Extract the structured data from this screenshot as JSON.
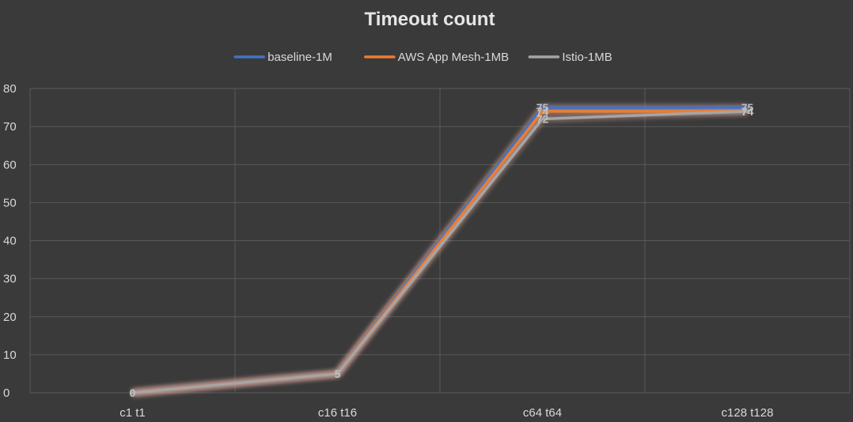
{
  "chart_data": {
    "type": "line",
    "title": "Timeout count",
    "xlabel": "",
    "ylabel": "",
    "categories": [
      "c1 t1",
      "c16 t16",
      "c64 t64",
      "c128 t128"
    ],
    "ylim": [
      0,
      80
    ],
    "yticks": [
      0,
      10,
      20,
      30,
      40,
      50,
      60,
      70,
      80
    ],
    "grid": true,
    "legend_position": "top",
    "series": [
      {
        "name": "baseline-1M",
        "color": "#4472c4",
        "values": [
          0,
          5,
          75,
          75
        ],
        "labels": [
          "0",
          "5",
          "75",
          "75"
        ]
      },
      {
        "name": "AWS App Mesh-1MB",
        "color": "#ed7d31",
        "values": [
          0,
          5,
          74,
          74
        ],
        "labels": [
          "0",
          "5",
          "74",
          "74"
        ]
      },
      {
        "name": "Istio-1MB",
        "color": "#a5a5a5",
        "values": [
          0,
          5,
          72,
          74
        ],
        "labels": [
          "0",
          "5",
          "72",
          "74"
        ]
      }
    ]
  }
}
